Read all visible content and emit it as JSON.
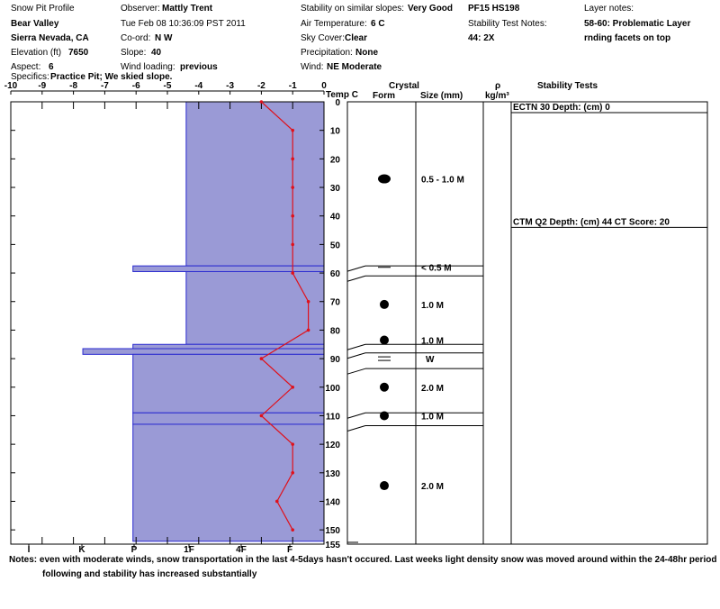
{
  "header": {
    "col1": [
      {
        "label": "",
        "value": "Snow Pit Profile"
      },
      {
        "label": "",
        "value": "Bear Valley"
      },
      {
        "label": "",
        "value": "Sierra Nevada, CA"
      },
      {
        "label": "Elevation (ft)",
        "value": "7650"
      },
      {
        "label": "Aspect:",
        "value": "6"
      }
    ],
    "col2": [
      {
        "label": "Observer:",
        "value": "Mattly Trent"
      },
      {
        "label": "",
        "value": "Tue Feb 08 10:36:09 PST 2011"
      },
      {
        "label": "Co-ord:",
        "value": "N  W"
      },
      {
        "label": "Slope:",
        "value": "40"
      },
      {
        "label": "Wind loading:",
        "value": "previous"
      }
    ],
    "col3": [
      {
        "label": "Stability on similar slopes:",
        "value": "Very Good"
      },
      {
        "label": "Air Temperature:",
        "value": "6 C"
      },
      {
        "label": "Sky Cover:",
        "value": "Clear"
      },
      {
        "label": "Precipitation:",
        "value": "None"
      },
      {
        "label": "Wind:",
        "value": "NE Moderate"
      }
    ],
    "col4": {
      "pf": "PF15 HS198",
      "stn_label": "Stability Test Notes:",
      "stn_value": "44: 2X"
    },
    "col5": {
      "label": "Layer notes:",
      "value1": "58-60: Problematic Layer",
      "value2": "rnding facets on top"
    },
    "specifics_label": "Specifics:",
    "specifics_value": "Practice Pit; We skied slope."
  },
  "columns": {
    "temp": "Temp C",
    "crystal": "Crystal",
    "form": "Form",
    "size": "Size (mm)",
    "rho": "ρ",
    "rho_unit": "kg/m³",
    "stability": "Stability Tests"
  },
  "notes": {
    "label": "Notes:",
    "text": "even with moderate winds, snow transportation in the last 4-5days hasn't occured. Last weeks light density snow was moved around within the 24-48hr period",
    "text2": "following and stability has increased substantially"
  },
  "chart_data": {
    "type": "snow_profile",
    "temperature_axis": {
      "ticks": [
        "-10",
        "-9",
        "-8",
        "-7",
        "-6",
        "-5",
        "-4",
        "-3",
        "-2",
        "-1",
        "0"
      ],
      "range": [
        -10,
        0
      ]
    },
    "hardness_axis": {
      "ticks": [
        "I",
        "K",
        "P",
        "1F",
        "4F",
        "F"
      ]
    },
    "depth_axis": {
      "unit": "cm",
      "range": [
        0,
        155
      ],
      "ticks": [
        "0",
        "10",
        "20",
        "30",
        "40",
        "50",
        "60",
        "70",
        "80",
        "90",
        "100",
        "110",
        "120",
        "130",
        "140",
        "150",
        "155"
      ]
    },
    "temperature_profile": {
      "depth": [
        0,
        10,
        20,
        30,
        40,
        50,
        60,
        70,
        80,
        90,
        100,
        110,
        120,
        130,
        140,
        150
      ],
      "temp": [
        -2,
        -1,
        -1,
        -1,
        -1,
        -1,
        -1,
        -0.5,
        -0.5,
        -2,
        -1,
        -2,
        -1,
        -1,
        -1.5,
        -1
      ]
    },
    "hardness_layers": [
      {
        "top": 0,
        "bottom": 57.5,
        "hardness_temp": -4.4
      },
      {
        "top": 57.5,
        "bottom": 59.5,
        "hardness_temp": -6.1
      },
      {
        "top": 59.5,
        "bottom": 85,
        "hardness_temp": -4.4
      },
      {
        "top": 85,
        "bottom": 86.5,
        "hardness_temp": -6.1
      },
      {
        "top": 86.5,
        "bottom": 88.5,
        "hardness_temp": -7.7
      },
      {
        "top": 88.5,
        "bottom": 109,
        "hardness_temp": -6.1
      },
      {
        "top": 109,
        "bottom": 113,
        "hardness_temp": -6.1
      },
      {
        "top": 113,
        "bottom": 154,
        "hardness_temp": -6.1
      }
    ],
    "layer_boundaries": [
      57.5,
      61,
      85,
      88,
      93.5,
      109,
      113.5
    ],
    "crystals": [
      {
        "depth": 27,
        "form": "rounded-large",
        "size": "0.5 - 1.0 M"
      },
      {
        "depth": 58,
        "form": "dash",
        "size": "< 0.5 M"
      },
      {
        "depth": 71,
        "form": "rounded",
        "size": "1.0 M"
      },
      {
        "depth": 83.5,
        "form": "rounded",
        "size": "1.0 M"
      },
      {
        "depth": 90,
        "form": "double-dash",
        "size": "W"
      },
      {
        "depth": 100,
        "form": "rounded",
        "size": "2.0 M"
      },
      {
        "depth": 110,
        "form": "rounded",
        "size": "1.0 M"
      },
      {
        "depth": 134.5,
        "form": "rounded",
        "size": "2.0 M"
      }
    ],
    "stability_tests": [
      {
        "depth": 0,
        "text": "ECTN 30   Depth: (cm) 0"
      },
      {
        "depth": 44,
        "text": "CTM Q2 Depth: (cm) 44 CT Score: 20"
      }
    ]
  }
}
